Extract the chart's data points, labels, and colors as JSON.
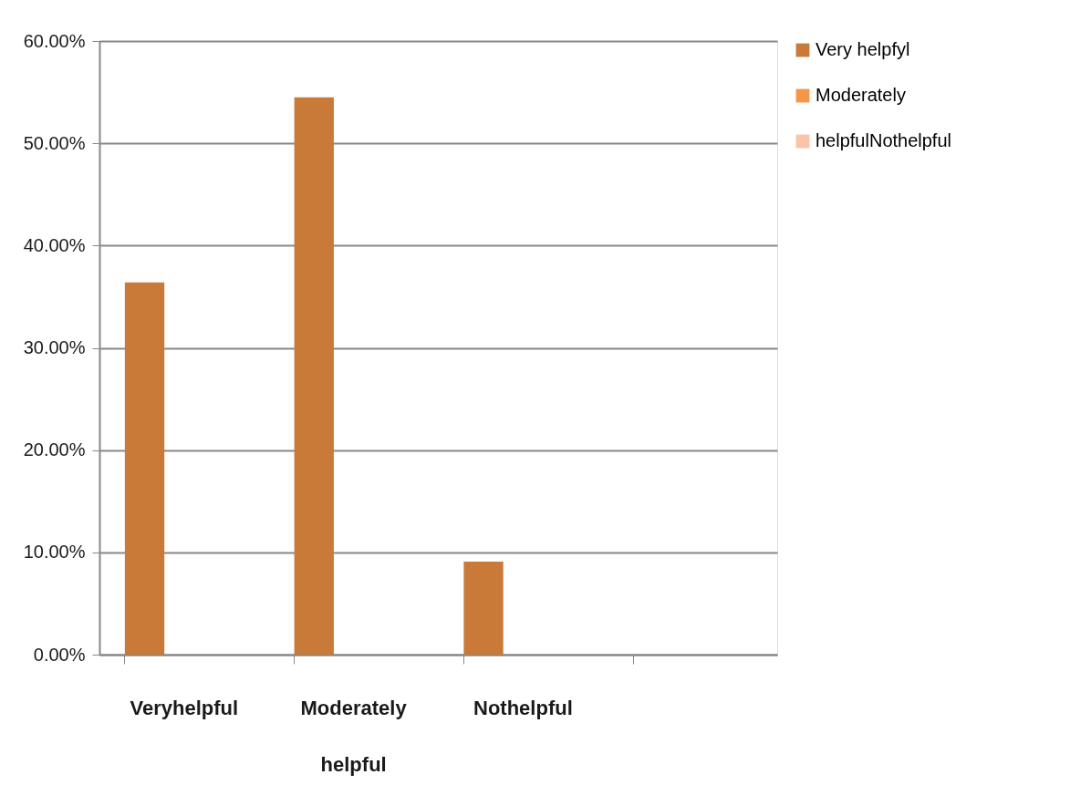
{
  "chart_data": {
    "type": "bar",
    "categories": [
      "Veryhelpful",
      "Moderately helpful",
      "Nothelpful",
      null
    ],
    "series": [
      {
        "name": "Very helpfyl",
        "color": "#c97a38",
        "values": [
          36.4,
          54.5,
          9.1,
          null
        ]
      },
      {
        "name": "Moderately",
        "color": "#f79646",
        "values": [
          null,
          null,
          null,
          null
        ]
      },
      {
        "name": "helpfulNothelpful",
        "color": "#f9c4a8",
        "values": [
          null,
          null,
          null,
          null
        ]
      }
    ],
    "ylim": [
      0,
      60
    ],
    "yticks": [
      {
        "value": 0,
        "label": "0.00%"
      },
      {
        "value": 10,
        "label": "10.00%"
      },
      {
        "value": 20,
        "label": "20.00%"
      },
      {
        "value": 30,
        "label": "30.00%"
      },
      {
        "value": 40,
        "label": "40.00%"
      },
      {
        "value": 50,
        "label": "50.00%"
      },
      {
        "value": 60,
        "label": "60.00%"
      }
    ],
    "grid": "y",
    "legend": "right"
  }
}
